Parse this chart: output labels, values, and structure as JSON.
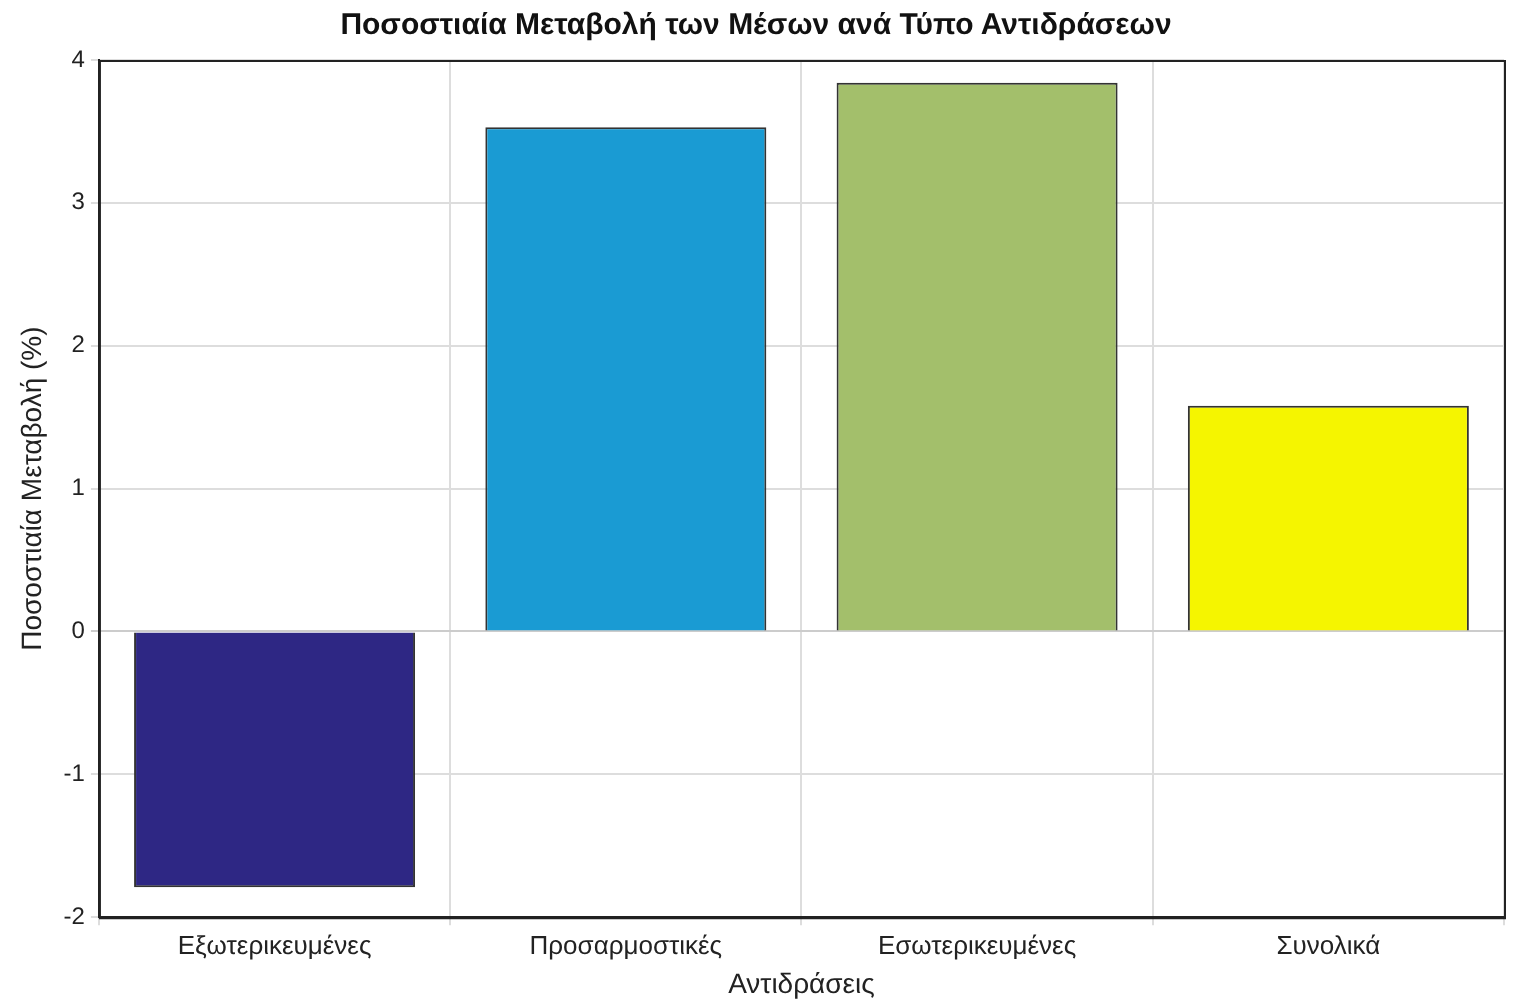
{
  "chart_data": {
    "type": "bar",
    "title": "Ποσοστιαία Μεταβολή των Μέσων ανά Τύπο Αντιδράσεων",
    "xlabel": "Αντιδράσεις",
    "ylabel": "Ποσοστιαία Μεταβολή (%)",
    "categories": [
      "Εξωτερικευμένες",
      "Προσαρμοστικές",
      "Εσωτερικευμένες",
      "Συνολικά"
    ],
    "values": [
      -1.79,
      3.53,
      3.84,
      1.58
    ],
    "colors": [
      "#2e2784",
      "#1a9bd3",
      "#a3bf6b",
      "#f5f500"
    ],
    "ylim": [
      -2,
      4
    ],
    "yticks": [
      -2,
      -1,
      0,
      1,
      2,
      3,
      4
    ],
    "grid": true,
    "legend": false
  }
}
